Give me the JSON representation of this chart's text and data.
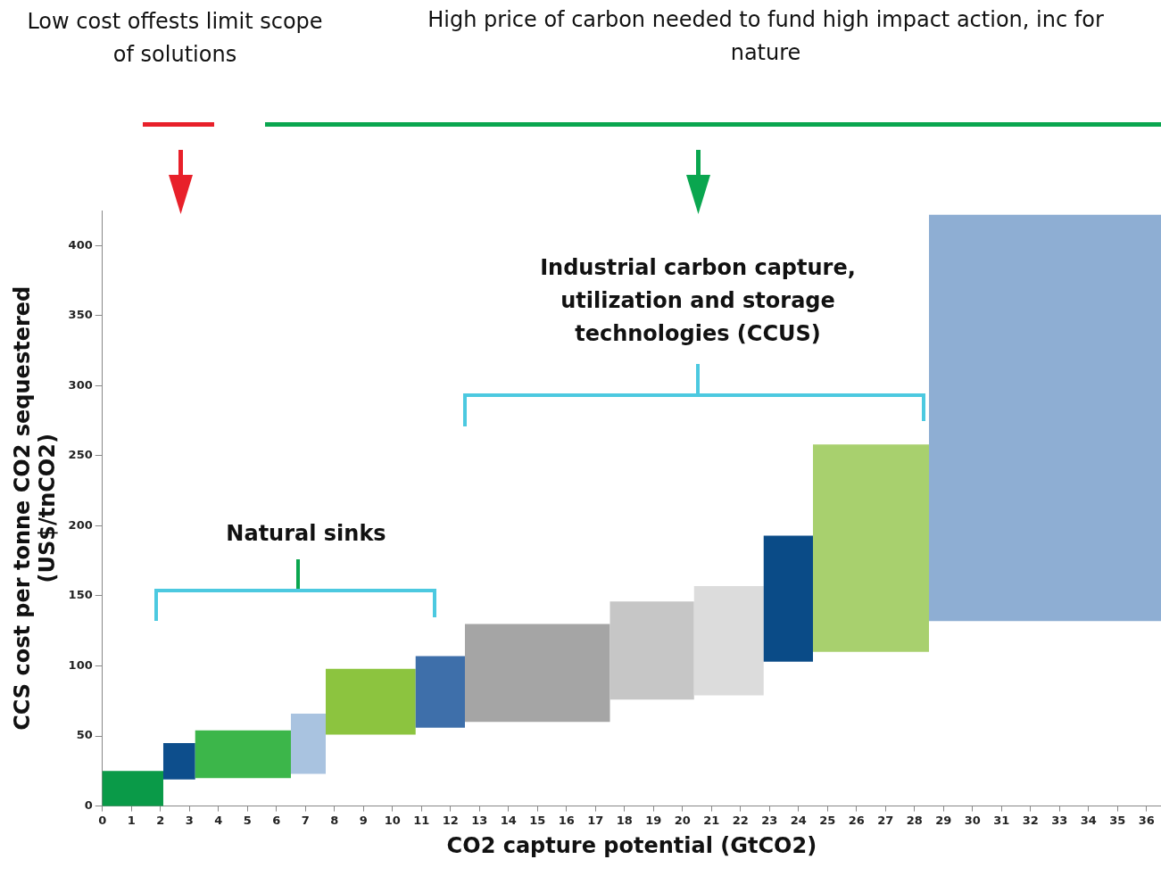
{
  "chart_data": {
    "type": "histogram",
    "xlabel": "CO2 capture potential (GtCO2)",
    "ylabel": "CCS cost per tonne CO2 sequestered\n(US$/tnCO2)",
    "bins": [
      0,
      2.1,
      3.2,
      6.5,
      7.7,
      10.8,
      12.5,
      17.5,
      20.4,
      22.8,
      24.5,
      28.5,
      36.5
    ],
    "values": [
      25,
      26,
      34,
      43,
      47,
      51,
      70,
      70,
      78,
      90,
      148,
      290
    ],
    "base": [
      0,
      19,
      20,
      23,
      51,
      56,
      60,
      76,
      79,
      103,
      110,
      132
    ],
    "colors": [
      "#0a9a48",
      "#0d4e8c",
      "#3cb64a",
      "#a9c3e0",
      "#8cc43f",
      "#3e6faa",
      "#a5a5a5",
      "#c6c6c6",
      "#dcdcdc",
      "#0a4b87",
      "#a8d06e",
      "#8eaed3"
    ],
    "xlim": [
      0,
      36.5
    ],
    "xticks": [
      0,
      1,
      2,
      3,
      4,
      5,
      6,
      7,
      8,
      9,
      10,
      11,
      12,
      13,
      14,
      15,
      16,
      17,
      18,
      19,
      20,
      21,
      22,
      23,
      24,
      25,
      26,
      27,
      28,
      29,
      30,
      31,
      32,
      33,
      34,
      35,
      36
    ],
    "ylim": [
      0,
      425
    ],
    "yticks": [
      0,
      50,
      100,
      150,
      200,
      250,
      300,
      350,
      400
    ],
    "grid": false,
    "legend": false,
    "annotations": [
      "Low cost offests limit scope of solutions",
      "High price of carbon needed to fund high impact action, inc for nature",
      "Natural sinks",
      "Industrial carbon capture, utilization and storage technologies (CCUS)"
    ]
  }
}
